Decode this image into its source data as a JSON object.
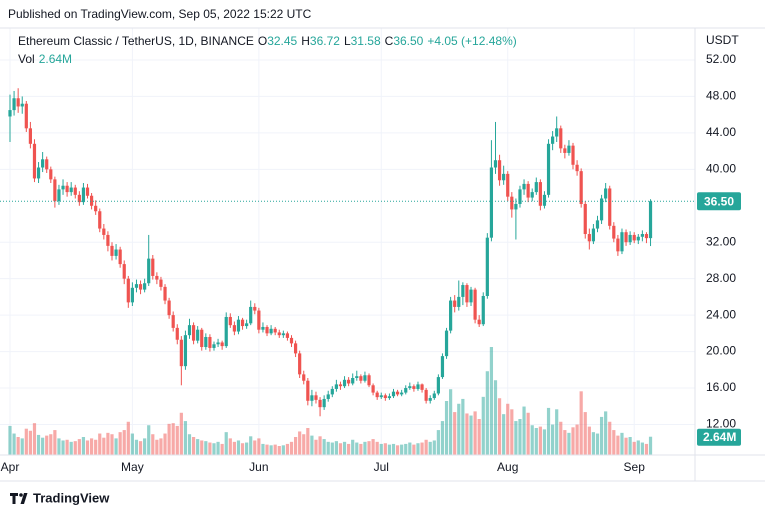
{
  "header": {
    "published": "Published on TradingView.com, Sep 05, 2022 15:22 UTC"
  },
  "chart_data": {
    "type": "candlestick",
    "title": "Ethereum Classic / TetherUS, 1D, BINANCE",
    "currency": "USDT",
    "legend_ohlc": [
      {
        "key": "O",
        "label": "32.45"
      },
      {
        "key": "H",
        "label": "36.72"
      },
      {
        "key": "L",
        "label": "31.58"
      },
      {
        "key": "C",
        "label": "36.50"
      }
    ],
    "change_label": "+4.05 (+12.48%)",
    "last_price_label": "36.50",
    "up_color": "#26a69a",
    "down_color": "#ef5350",
    "candles": [
      [
        45.8,
        48.2,
        43.0,
        46.5
      ],
      [
        46.5,
        48.6,
        45.9,
        47.8
      ],
      [
        47.8,
        48.9,
        46.2,
        46.9
      ],
      [
        46.9,
        48.0,
        46.1,
        47.2
      ],
      [
        47.2,
        47.5,
        44.1,
        44.5
      ],
      [
        44.5,
        45.2,
        42.3,
        42.8
      ],
      [
        42.8,
        43.3,
        38.6,
        39.0
      ],
      [
        39.0,
        40.8,
        38.5,
        40.2
      ],
      [
        40.2,
        41.9,
        39.7,
        41.1
      ],
      [
        41.1,
        41.4,
        39.6,
        40.0
      ],
      [
        40.0,
        40.3,
        38.5,
        38.9
      ],
      [
        38.9,
        39.2,
        35.8,
        36.5
      ],
      [
        36.5,
        38.3,
        36.1,
        37.8
      ],
      [
        37.8,
        38.9,
        37.2,
        38.2
      ],
      [
        38.2,
        38.6,
        37.0,
        37.5
      ],
      [
        37.5,
        38.6,
        37.1,
        38.0
      ],
      [
        38.0,
        38.3,
        36.8,
        37.2
      ],
      [
        37.2,
        37.6,
        36.0,
        36.4
      ],
      [
        36.4,
        38.5,
        36.1,
        38.0
      ],
      [
        38.0,
        38.4,
        36.8,
        37.1
      ],
      [
        37.1,
        37.4,
        35.6,
        36.0
      ],
      [
        36.0,
        36.6,
        35.0,
        35.4
      ],
      [
        35.4,
        35.7,
        33.1,
        33.5
      ],
      [
        33.5,
        34.0,
        32.3,
        32.8
      ],
      [
        32.8,
        33.2,
        31.0,
        31.6
      ],
      [
        31.6,
        32.0,
        30.0,
        30.5
      ],
      [
        30.5,
        31.8,
        30.1,
        31.2
      ],
      [
        31.2,
        31.5,
        29.2,
        29.6
      ],
      [
        29.6,
        30.0,
        27.4,
        28.0
      ],
      [
        28.0,
        28.3,
        24.8,
        25.4
      ],
      [
        25.4,
        27.6,
        25.0,
        27.0
      ],
      [
        27.0,
        27.9,
        26.5,
        27.4
      ],
      [
        27.4,
        27.8,
        26.3,
        26.8
      ],
      [
        26.8,
        28.0,
        26.5,
        27.5
      ],
      [
        27.5,
        32.8,
        27.2,
        30.2
      ],
      [
        30.2,
        30.6,
        27.9,
        28.3
      ],
      [
        28.3,
        28.7,
        27.4,
        27.9
      ],
      [
        27.9,
        28.2,
        26.7,
        27.1
      ],
      [
        27.1,
        27.4,
        25.2,
        25.6
      ],
      [
        25.6,
        25.9,
        23.6,
        24.0
      ],
      [
        24.0,
        24.4,
        22.2,
        22.6
      ],
      [
        22.6,
        23.0,
        20.8,
        21.3
      ],
      [
        21.3,
        21.7,
        16.3,
        18.4
      ],
      [
        18.4,
        22.3,
        18.0,
        21.8
      ],
      [
        21.8,
        23.6,
        21.4,
        22.9
      ],
      [
        22.9,
        23.2,
        20.8,
        21.2
      ],
      [
        21.2,
        22.8,
        20.9,
        22.4
      ],
      [
        22.4,
        22.6,
        20.1,
        20.5
      ],
      [
        20.5,
        22.0,
        20.2,
        21.6
      ],
      [
        21.6,
        21.9,
        20.0,
        20.4
      ],
      [
        20.4,
        21.1,
        20.1,
        20.8
      ],
      [
        20.8,
        21.4,
        20.5,
        21.0
      ],
      [
        21.0,
        21.2,
        20.2,
        20.6
      ],
      [
        20.6,
        24.3,
        20.4,
        23.8
      ],
      [
        23.8,
        24.2,
        22.6,
        22.9
      ],
      [
        22.9,
        23.3,
        21.8,
        22.2
      ],
      [
        22.2,
        23.9,
        21.9,
        23.5
      ],
      [
        23.5,
        23.7,
        22.4,
        22.8
      ],
      [
        22.8,
        23.5,
        22.5,
        23.1
      ],
      [
        23.1,
        25.6,
        22.9,
        24.9
      ],
      [
        24.9,
        25.3,
        24.1,
        24.5
      ],
      [
        24.5,
        24.8,
        22.0,
        22.4
      ],
      [
        22.4,
        23.2,
        22.1,
        22.7
      ],
      [
        22.7,
        22.9,
        21.7,
        22.0
      ],
      [
        22.0,
        22.9,
        21.8,
        22.5
      ],
      [
        22.5,
        22.7,
        21.8,
        22.1
      ],
      [
        22.1,
        22.4,
        21.5,
        21.8
      ],
      [
        21.8,
        22.3,
        21.5,
        22.0
      ],
      [
        22.0,
        22.2,
        21.2,
        21.5
      ],
      [
        21.5,
        21.8,
        20.5,
        20.9
      ],
      [
        20.9,
        21.2,
        19.4,
        19.8
      ],
      [
        19.8,
        20.1,
        17.1,
        17.5
      ],
      [
        17.5,
        17.9,
        16.4,
        16.8
      ],
      [
        16.8,
        17.1,
        14.1,
        14.6
      ],
      [
        14.6,
        15.8,
        14.0,
        15.2
      ],
      [
        15.2,
        15.6,
        14.3,
        14.7
      ],
      [
        14.7,
        15.0,
        12.9,
        13.9
      ],
      [
        13.9,
        15.2,
        13.6,
        14.8
      ],
      [
        14.8,
        15.7,
        14.5,
        15.3
      ],
      [
        15.3,
        16.2,
        15.0,
        15.9
      ],
      [
        15.9,
        16.9,
        15.6,
        16.4
      ],
      [
        16.4,
        16.7,
        15.8,
        16.2
      ],
      [
        16.2,
        17.3,
        16.0,
        16.9
      ],
      [
        16.9,
        17.2,
        16.2,
        16.5
      ],
      [
        16.5,
        17.6,
        16.3,
        17.1
      ],
      [
        17.1,
        17.9,
        16.8,
        17.3
      ],
      [
        17.3,
        17.5,
        16.5,
        16.8
      ],
      [
        16.8,
        17.8,
        16.6,
        17.4
      ],
      [
        17.4,
        17.6,
        16.1,
        16.3
      ],
      [
        16.3,
        16.5,
        15.2,
        15.5
      ],
      [
        15.5,
        15.7,
        14.7,
        15.0
      ],
      [
        15.0,
        15.5,
        14.8,
        15.2
      ],
      [
        15.2,
        15.4,
        14.6,
        14.9
      ],
      [
        14.9,
        15.4,
        14.7,
        15.1
      ],
      [
        15.1,
        15.9,
        14.9,
        15.6
      ],
      [
        15.6,
        15.8,
        15.1,
        15.3
      ],
      [
        15.3,
        15.8,
        15.1,
        15.5
      ],
      [
        15.5,
        16.3,
        15.3,
        16.0
      ],
      [
        16.0,
        16.6,
        15.8,
        16.2
      ],
      [
        16.2,
        16.4,
        15.6,
        15.9
      ],
      [
        15.9,
        16.7,
        15.7,
        16.4
      ],
      [
        16.4,
        16.5,
        15.5,
        15.8
      ],
      [
        15.8,
        16.0,
        14.3,
        14.6
      ],
      [
        14.6,
        15.2,
        14.3,
        14.9
      ],
      [
        14.9,
        15.7,
        14.7,
        15.4
      ],
      [
        15.4,
        17.5,
        15.2,
        17.2
      ],
      [
        17.2,
        19.8,
        17.0,
        19.5
      ],
      [
        19.5,
        22.6,
        19.2,
        22.3
      ],
      [
        22.3,
        26.0,
        22.0,
        25.6
      ],
      [
        25.6,
        26.2,
        24.3,
        24.9
      ],
      [
        24.9,
        27.8,
        24.5,
        26.0
      ],
      [
        26.0,
        27.6,
        25.1,
        27.3
      ],
      [
        27.3,
        27.5,
        24.9,
        25.4
      ],
      [
        25.4,
        27.1,
        25.0,
        26.8
      ],
      [
        26.8,
        27.0,
        23.1,
        23.5
      ],
      [
        23.5,
        24.0,
        22.7,
        23.0
      ],
      [
        23.0,
        26.5,
        22.8,
        26.1
      ],
      [
        26.1,
        33.0,
        25.8,
        32.5
      ],
      [
        32.5,
        43.2,
        32.1,
        40.2
      ],
      [
        40.2,
        45.2,
        39.5,
        41.0
      ],
      [
        41.0,
        41.6,
        38.2,
        38.8
      ],
      [
        38.8,
        40.4,
        38.3,
        39.5
      ],
      [
        39.5,
        39.8,
        36.5,
        37.0
      ],
      [
        37.0,
        37.5,
        34.7,
        35.6
      ],
      [
        35.6,
        36.8,
        32.3,
        36.2
      ],
      [
        36.2,
        38.2,
        35.8,
        37.8
      ],
      [
        37.8,
        38.9,
        37.2,
        38.4
      ],
      [
        38.4,
        38.7,
        36.4,
        36.9
      ],
      [
        36.9,
        37.9,
        36.5,
        37.5
      ],
      [
        37.5,
        39.1,
        37.2,
        38.6
      ],
      [
        38.6,
        38.9,
        35.5,
        36.0
      ],
      [
        36.0,
        37.6,
        35.7,
        37.2
      ],
      [
        37.2,
        43.3,
        36.9,
        42.8
      ],
      [
        42.8,
        44.2,
        42.1,
        43.6
      ],
      [
        43.6,
        45.8,
        43.0,
        44.5
      ],
      [
        44.5,
        44.8,
        41.8,
        42.3
      ],
      [
        42.3,
        42.7,
        41.2,
        41.8
      ],
      [
        41.8,
        43.2,
        41.5,
        42.6
      ],
      [
        42.6,
        42.9,
        40.0,
        40.5
      ],
      [
        40.5,
        41.0,
        39.3,
        39.8
      ],
      [
        39.8,
        40.1,
        35.8,
        36.2
      ],
      [
        36.2,
        36.5,
        32.4,
        32.9
      ],
      [
        32.9,
        33.5,
        31.2,
        32.1
      ],
      [
        32.1,
        34.0,
        31.8,
        33.5
      ],
      [
        33.5,
        34.9,
        33.1,
        34.4
      ],
      [
        34.4,
        37.2,
        34.0,
        36.8
      ],
      [
        36.8,
        38.5,
        36.4,
        37.9
      ],
      [
        37.9,
        38.2,
        33.4,
        33.8
      ],
      [
        33.8,
        34.2,
        32.0,
        32.4
      ],
      [
        32.4,
        32.8,
        30.5,
        31.0
      ],
      [
        31.0,
        33.5,
        30.7,
        33.1
      ],
      [
        33.1,
        33.4,
        31.6,
        32.0
      ],
      [
        32.0,
        33.2,
        31.7,
        32.8
      ],
      [
        32.8,
        33.1,
        31.9,
        32.2
      ],
      [
        32.2,
        32.9,
        31.8,
        32.6
      ],
      [
        32.6,
        33.3,
        32.1,
        32.9
      ],
      [
        32.9,
        33.1,
        31.9,
        32.45
      ],
      [
        32.45,
        36.72,
        31.58,
        36.5
      ]
    ],
    "volume": {
      "name": "Vol",
      "last_label": "2.64M",
      "values": [
        4.2,
        3.1,
        2.6,
        2.4,
        3.8,
        3.5,
        4.6,
        2.9,
        2.5,
        2.8,
        3.0,
        3.6,
        2.4,
        2.1,
        2.2,
        1.9,
        2.0,
        2.3,
        2.6,
        2.1,
        2.4,
        2.2,
        3.1,
        2.5,
        3.2,
        3.0,
        2.4,
        3.3,
        3.6,
        4.8,
        3.1,
        2.2,
        2.0,
        2.4,
        4.3,
        3.0,
        2.2,
        2.4,
        3.1,
        4.5,
        4.6,
        4.2,
        6.1,
        4.9,
        3.0,
        2.6,
        2.3,
        2.1,
        2.0,
        1.8,
        1.7,
        1.9,
        1.6,
        3.3,
        2.4,
        1.9,
        2.1,
        1.7,
        1.8,
        2.7,
        2.1,
        2.4,
        1.6,
        1.5,
        1.4,
        1.5,
        1.3,
        1.4,
        1.6,
        1.9,
        2.6,
        3.4,
        3.0,
        3.9,
        2.8,
        2.2,
        2.7,
        2.3,
        1.9,
        1.8,
        2.0,
        1.7,
        1.9,
        1.6,
        2.2,
        1.8,
        1.6,
        1.9,
        2.0,
        2.3,
        1.9,
        1.6,
        1.7,
        1.5,
        1.6,
        1.4,
        1.5,
        1.6,
        1.8,
        1.5,
        1.7,
        1.8,
        2.2,
        1.9,
        2.1,
        3.6,
        4.9,
        7.8,
        9.5,
        6.2,
        7.4,
        8.1,
        6.0,
        5.7,
        6.3,
        5.2,
        8.4,
        12.1,
        15.6,
        10.8,
        8.2,
        5.9,
        7.4,
        6.6,
        4.9,
        5.2,
        7.0,
        6.1,
        4.3,
        3.9,
        4.1,
        3.7,
        6.8,
        4.4,
        6.6,
        4.8,
        3.6,
        3.2,
        4.0,
        4.4,
        9.2,
        6.2,
        4.1,
        3.3,
        3.1,
        5.5,
        6.3,
        4.8,
        3.6,
        2.8,
        3.2,
        2.5,
        2.6,
        1.9,
        2.1,
        1.8,
        1.6,
        2.64
      ]
    },
    "xlim": [
      -2.45,
      167.9
    ],
    "xticks": [
      {
        "value": 0,
        "label": "Apr"
      },
      {
        "value": 30,
        "label": "May"
      },
      {
        "value": 61,
        "label": "Jun"
      },
      {
        "value": 91,
        "label": "Jul"
      },
      {
        "value": 122,
        "label": "Aug"
      },
      {
        "value": 153,
        "label": "Sep"
      }
    ],
    "ylim": [
      8.65,
      55.51
    ],
    "yticks": [
      {
        "value": 12,
        "label": "12.00"
      },
      {
        "value": 16,
        "label": "16.00"
      },
      {
        "value": 20,
        "label": "20.00"
      },
      {
        "value": 24,
        "label": "24.00"
      },
      {
        "value": 28,
        "label": "28.00"
      },
      {
        "value": 32,
        "label": "32.00"
      },
      {
        "value": 40,
        "label": "40.00"
      },
      {
        "value": 44,
        "label": "44.00"
      },
      {
        "value": 48,
        "label": "48.00"
      },
      {
        "value": 52,
        "label": "52.00"
      }
    ],
    "grid": true
  },
  "footer": {
    "brand": "TradingView"
  }
}
